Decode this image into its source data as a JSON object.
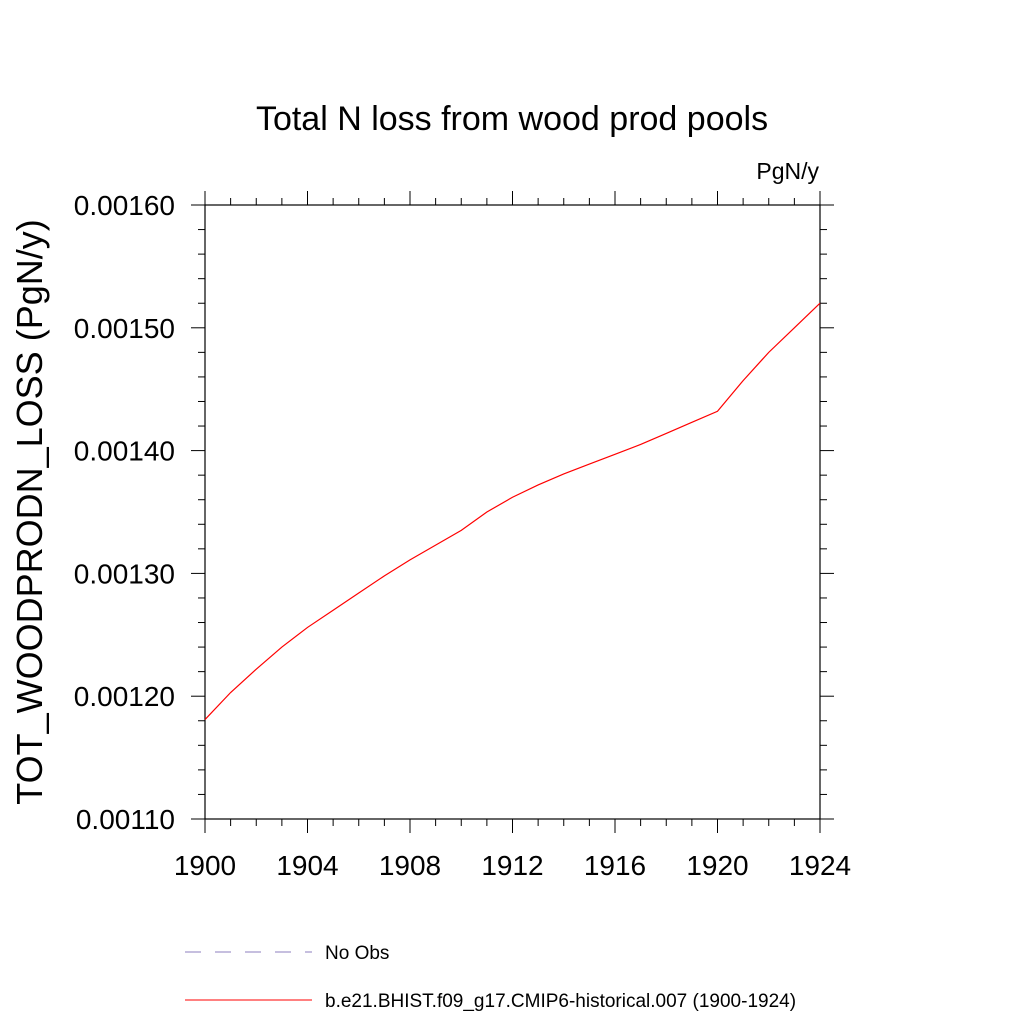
{
  "chart_data": {
    "type": "line",
    "title": "Total N loss from wood prod pools",
    "units_label": "PgN/y",
    "ylabel": "TOT_WOODPRODN_LOSS  (PgN/y)",
    "xlabel": "",
    "xlim": [
      1900,
      1924
    ],
    "ylim": [
      0.0011,
      0.0016
    ],
    "x_ticks": [
      1900,
      1904,
      1908,
      1912,
      1916,
      1920,
      1924
    ],
    "x_tick_labels": [
      "1900",
      "1904",
      "1908",
      "1912",
      "1916",
      "1920",
      "1924"
    ],
    "y_ticks": [
      0.0011,
      0.0012,
      0.0013,
      0.0014,
      0.0015,
      0.0016
    ],
    "y_tick_labels": [
      "0.00110",
      "0.00120",
      "0.00130",
      "0.00140",
      "0.00150",
      "0.00160"
    ],
    "grid": false,
    "legend_position": "bottom",
    "series": [
      {
        "name": "b.e21.BHIST.f09_g17.CMIP6-historical.007 (1900-1924)",
        "color": "#ff0000",
        "style": "solid",
        "x": [
          1900,
          1901,
          1902,
          1903,
          1904,
          1905,
          1906,
          1907,
          1908,
          1909,
          1910,
          1911,
          1912,
          1913,
          1914,
          1915,
          1916,
          1917,
          1918,
          1919,
          1920,
          1921,
          1922,
          1923,
          1924
        ],
        "y": [
          0.001181,
          0.001203,
          0.001222,
          0.00124,
          0.001256,
          0.00127,
          0.001284,
          0.001298,
          0.001311,
          0.001323,
          0.001335,
          0.00135,
          0.001362,
          0.001372,
          0.001381,
          0.001389,
          0.001397,
          0.001405,
          0.001414,
          0.001423,
          0.001432,
          0.001457,
          0.00148,
          0.0015,
          0.00152
        ]
      }
    ],
    "legend": [
      {
        "label": "No Obs",
        "color": "#8c7fbf",
        "style": "dashed"
      },
      {
        "label": "b.e21.BHIST.f09_g17.CMIP6-historical.007 (1900-1924)",
        "color": "#ff0000",
        "style": "solid"
      }
    ]
  }
}
